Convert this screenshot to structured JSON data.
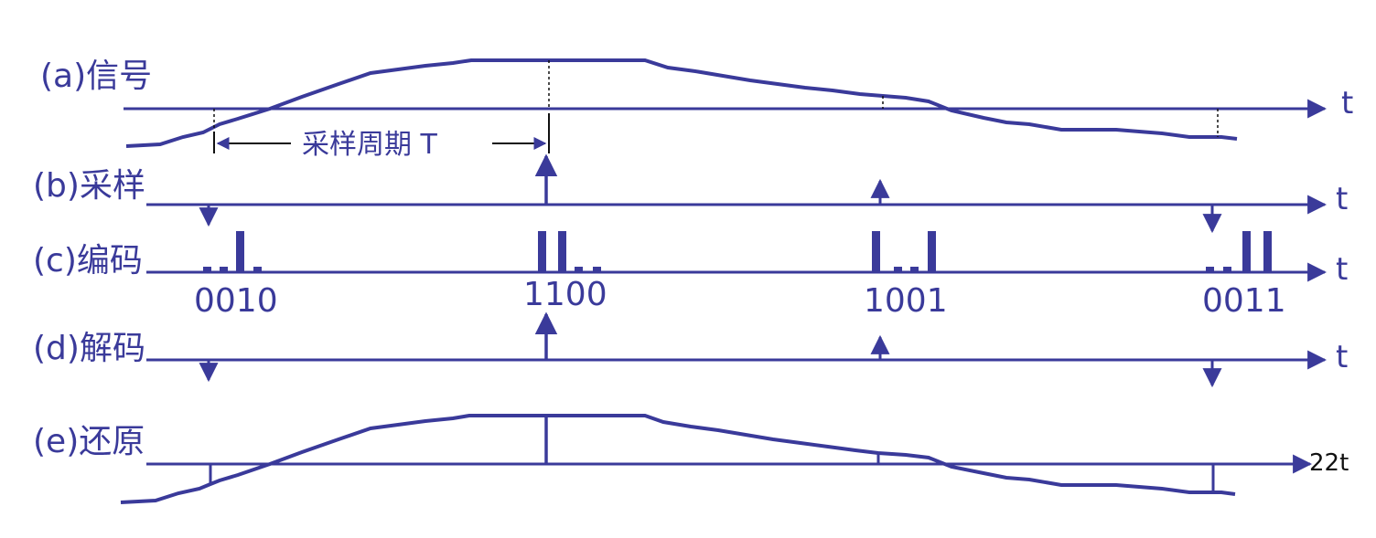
{
  "colors": {
    "stroke": "#3a3a9a",
    "background": "#ffffff",
    "footnote": "#111111"
  },
  "rows": {
    "a": {
      "label": "(a)信号",
      "axis_label": "t"
    },
    "b": {
      "label": "(b)采样",
      "axis_label": "t"
    },
    "c": {
      "label": "(c)编码",
      "axis_label": "t"
    },
    "d": {
      "label": "(d)解码",
      "axis_label": "t"
    },
    "e": {
      "label": "(e)还原",
      "axis_label": "22t"
    }
  },
  "sampling_period_label": "采样周期 T",
  "codes": [
    "0010",
    "1100",
    "1001",
    "0011"
  ],
  "samples": [
    {
      "code": "0010",
      "direction": "down"
    },
    {
      "code": "1100",
      "direction": "up"
    },
    {
      "code": "1001",
      "direction": "up"
    },
    {
      "code": "0011",
      "direction": "down"
    }
  ]
}
